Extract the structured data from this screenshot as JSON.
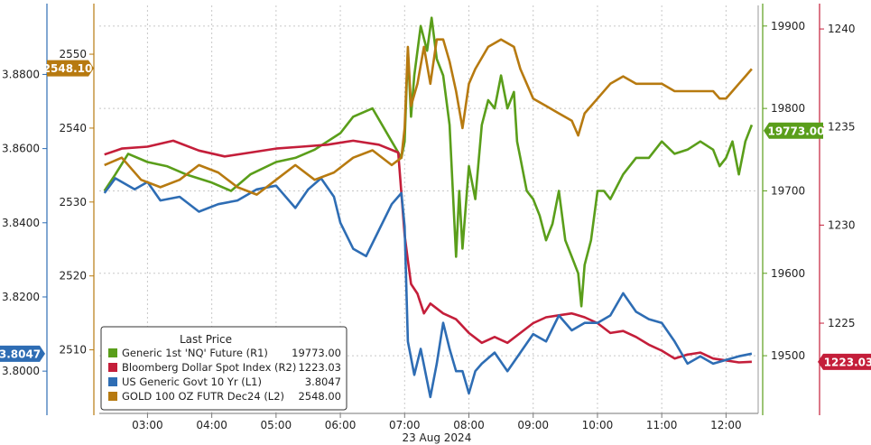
{
  "chart_data": {
    "type": "line",
    "xlabel": "23 Aug 2024",
    "x_ticks": [
      "03:00",
      "04:00",
      "05:00",
      "06:00",
      "07:00",
      "08:00",
      "09:00",
      "10:00",
      "11:00",
      "12:00"
    ],
    "x_range": [
      2.25,
      12.5
    ],
    "grid": true,
    "legend": {
      "title": "Last Price",
      "position": "bottom-left",
      "entries": [
        {
          "label": "Generic 1st 'NQ' Future  (R1)",
          "value": "19773.00",
          "color": "#5a9e1a"
        },
        {
          "label": "Bloomberg Dollar Spot Index  (R2)",
          "value": "1223.03",
          "color": "#c41e3a"
        },
        {
          "label": "US Generic Govt 10 Yr  (L1)",
          "value": "3.8047",
          "color": "#2e6db4"
        },
        {
          "label": "GOLD 100 OZ FUTR Dec24  (L2)",
          "value": "2548.00",
          "color": "#b77a10"
        }
      ]
    },
    "axes": {
      "L1": {
        "ticks": [
          "3.8800",
          "3.8600",
          "3.8400",
          "3.8200",
          "3.8000"
        ],
        "range": [
          3.7886,
          3.8986
        ],
        "color": "#2e6db4",
        "last_label": "3.8047",
        "last_value": 3.8047
      },
      "L2": {
        "ticks": [
          "2550",
          "2540",
          "2530",
          "2520",
          "2510"
        ],
        "range": [
          2501.4,
          2556.6
        ],
        "color": "#b77a10",
        "last_label": "2548.10",
        "last_value": 2548.1
      },
      "R1": {
        "ticks": [
          "19900",
          "19800",
          "19700",
          "19600",
          "19500"
        ],
        "range": [
          19430,
          19925
        ],
        "color": "#5a9e1a",
        "last_label": "19773.00",
        "last_value": 19773
      },
      "R2": {
        "ticks": [
          "1240",
          "1235",
          "1230",
          "1225"
        ],
        "range": [
          1220.4,
          1241.2
        ],
        "color": "#c41e3a",
        "last_label": "1223.03",
        "last_value": 1223.03
      }
    },
    "series": [
      {
        "name": "Generic 1st 'NQ' Future",
        "axis": "R1",
        "color": "#5a9e1a",
        "x": [
          2.33,
          2.5,
          2.7,
          3.0,
          3.3,
          3.6,
          4.0,
          4.3,
          4.6,
          5.0,
          5.3,
          5.6,
          6.0,
          6.2,
          6.5,
          6.8,
          6.95,
          7.0,
          7.05,
          7.1,
          7.15,
          7.25,
          7.35,
          7.42,
          7.5,
          7.6,
          7.7,
          7.8,
          7.85,
          7.9,
          8.0,
          8.1,
          8.2,
          8.3,
          8.4,
          8.5,
          8.6,
          8.7,
          8.75,
          8.8,
          8.9,
          9.0,
          9.1,
          9.2,
          9.3,
          9.4,
          9.5,
          9.6,
          9.7,
          9.75,
          9.8,
          9.9,
          10.0,
          10.1,
          10.2,
          10.4,
          10.6,
          10.8,
          11.0,
          11.2,
          11.4,
          11.6,
          11.8,
          11.9,
          12.0,
          12.1,
          12.2,
          12.3,
          12.4
        ],
        "y": [
          19700,
          19720,
          19745,
          19735,
          19730,
          19720,
          19710,
          19700,
          19720,
          19735,
          19740,
          19750,
          19770,
          19790,
          19800,
          19760,
          19740,
          19760,
          19870,
          19790,
          19840,
          19900,
          19870,
          19910,
          19860,
          19840,
          19780,
          19620,
          19700,
          19630,
          19730,
          19690,
          19780,
          19810,
          19800,
          19840,
          19800,
          19820,
          19760,
          19740,
          19700,
          19690,
          19670,
          19640,
          19660,
          19700,
          19640,
          19620,
          19600,
          19560,
          19610,
          19640,
          19700,
          19700,
          19690,
          19720,
          19740,
          19740,
          19760,
          19745,
          19750,
          19760,
          19750,
          19730,
          19740,
          19760,
          19720,
          19760,
          19780
        ]
      },
      {
        "name": "Bloomberg Dollar Spot Index",
        "axis": "R2",
        "color": "#c41e3a",
        "x": [
          2.33,
          2.6,
          3.0,
          3.4,
          3.8,
          4.2,
          4.6,
          5.0,
          5.4,
          5.8,
          6.2,
          6.6,
          6.9,
          7.0,
          7.05,
          7.1,
          7.2,
          7.3,
          7.4,
          7.6,
          7.8,
          8.0,
          8.2,
          8.4,
          8.6,
          8.8,
          9.0,
          9.2,
          9.4,
          9.6,
          9.8,
          10.0,
          10.2,
          10.4,
          10.6,
          10.8,
          11.0,
          11.2,
          11.4,
          11.6,
          11.8,
          12.0,
          12.2,
          12.4
        ],
        "y": [
          1233.6,
          1233.9,
          1234.0,
          1234.3,
          1233.8,
          1233.5,
          1233.7,
          1233.9,
          1234.0,
          1234.1,
          1234.3,
          1234.1,
          1233.7,
          1229.5,
          1228.2,
          1227.0,
          1226.5,
          1225.5,
          1226.0,
          1225.5,
          1225.2,
          1224.5,
          1224.0,
          1224.3,
          1224.0,
          1224.5,
          1225.0,
          1225.3,
          1225.4,
          1225.5,
          1225.3,
          1225.0,
          1224.5,
          1224.6,
          1224.3,
          1223.9,
          1223.6,
          1223.2,
          1223.4,
          1223.5,
          1223.2,
          1223.1,
          1223.0,
          1223.03
        ]
      },
      {
        "name": "US Generic Govt 10 Yr",
        "axis": "L1",
        "color": "#2e6db4",
        "x": [
          2.33,
          2.5,
          2.8,
          3.0,
          3.2,
          3.5,
          3.8,
          4.1,
          4.4,
          4.7,
          5.0,
          5.3,
          5.5,
          5.7,
          5.9,
          6.0,
          6.2,
          6.4,
          6.6,
          6.8,
          6.95,
          7.0,
          7.05,
          7.15,
          7.25,
          7.4,
          7.5,
          7.6,
          7.7,
          7.8,
          7.9,
          8.0,
          8.1,
          8.2,
          8.4,
          8.6,
          8.8,
          9.0,
          9.2,
          9.4,
          9.6,
          9.8,
          10.0,
          10.2,
          10.4,
          10.6,
          10.8,
          11.0,
          11.2,
          11.4,
          11.6,
          11.8,
          12.0,
          12.2,
          12.4
        ],
        "y": [
          3.848,
          3.852,
          3.849,
          3.851,
          3.846,
          3.847,
          3.843,
          3.845,
          3.846,
          3.849,
          3.85,
          3.844,
          3.849,
          3.852,
          3.847,
          3.84,
          3.833,
          3.831,
          3.838,
          3.845,
          3.848,
          3.839,
          3.808,
          3.799,
          3.806,
          3.793,
          3.802,
          3.813,
          3.806,
          3.8,
          3.8,
          3.794,
          3.8,
          3.802,
          3.805,
          3.8,
          3.805,
          3.81,
          3.808,
          3.815,
          3.811,
          3.813,
          3.813,
          3.815,
          3.821,
          3.816,
          3.814,
          3.813,
          3.808,
          3.802,
          3.804,
          3.802,
          3.803,
          3.804,
          3.8047
        ]
      },
      {
        "name": "GOLD 100 OZ FUTR Dec24",
        "axis": "L2",
        "color": "#b77a10",
        "x": [
          2.33,
          2.6,
          2.9,
          3.2,
          3.5,
          3.8,
          4.1,
          4.4,
          4.7,
          5.0,
          5.3,
          5.6,
          5.9,
          6.2,
          6.5,
          6.8,
          6.95,
          7.0,
          7.05,
          7.1,
          7.2,
          7.3,
          7.4,
          7.5,
          7.6,
          7.7,
          7.8,
          7.9,
          8.0,
          8.1,
          8.3,
          8.5,
          8.7,
          8.8,
          8.9,
          9.0,
          9.2,
          9.4,
          9.6,
          9.7,
          9.8,
          10.0,
          10.2,
          10.4,
          10.6,
          10.8,
          11.0,
          11.2,
          11.4,
          11.6,
          11.8,
          11.9,
          12.0,
          12.1,
          12.2,
          12.3,
          12.4
        ],
        "y": [
          2535,
          2536,
          2533,
          2532,
          2533,
          2535,
          2534,
          2532,
          2531,
          2533,
          2535,
          2533,
          2534,
          2536,
          2537,
          2535,
          2536,
          2540,
          2551,
          2543,
          2546,
          2551,
          2546,
          2552,
          2552,
          2549,
          2545,
          2540,
          2546,
          2548,
          2551,
          2552,
          2551,
          2548,
          2546,
          2544,
          2543,
          2542,
          2541,
          2539,
          2542,
          2544,
          2546,
          2547,
          2546,
          2546,
          2546,
          2545,
          2545,
          2545,
          2545,
          2544,
          2544,
          2545,
          2546,
          2547,
          2548
        ]
      }
    ]
  }
}
